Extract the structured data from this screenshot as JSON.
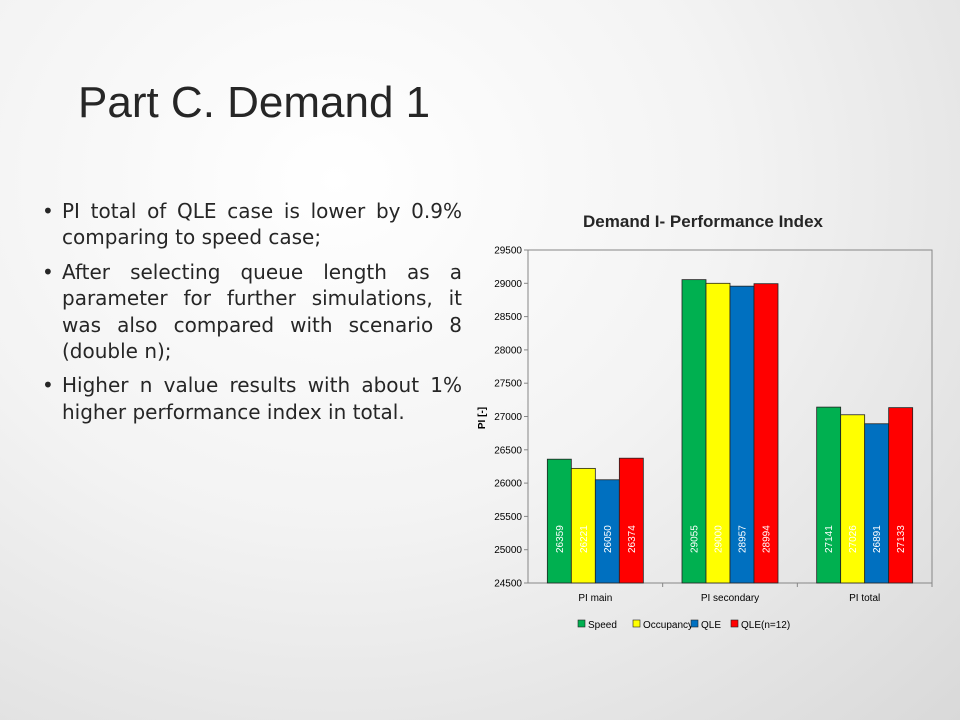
{
  "slide": {
    "title": "Part C. Demand 1",
    "bullets": [
      "PI total of QLE case is lower by 0.9% comparing to speed case;",
      "After selecting queue length as a parameter for further simulations, it was also compared with scenario 8 (double n);",
      "Higher n value results with about 1% higher performance index in total."
    ],
    "bullet_char": "•"
  },
  "chart_data": {
    "type": "bar",
    "title": "Demand I- Performance Index",
    "xlabel": "",
    "ylabel": "PI [-]",
    "ylim": [
      24500,
      29500
    ],
    "ytick_step": 500,
    "grid": false,
    "legend_position": "bottom",
    "categories": [
      "PI main",
      "PI secondary",
      "PI total"
    ],
    "series": [
      {
        "name": "Speed",
        "color": "#00b050",
        "label_color": "#ffffff",
        "values": [
          26359,
          29055,
          27141
        ]
      },
      {
        "name": "Occupancy",
        "color": "#ffff00",
        "label_color": "#ffffff",
        "values": [
          26221,
          29000,
          27026
        ]
      },
      {
        "name": "QLE",
        "color": "#0070c0",
        "label_color": "#ffffff",
        "values": [
          26050,
          28957,
          26891
        ]
      },
      {
        "name": "QLE(n=12)",
        "color": "#ff0000",
        "label_color": "#ffffff",
        "values": [
          26374,
          28994,
          27133
        ]
      }
    ]
  }
}
